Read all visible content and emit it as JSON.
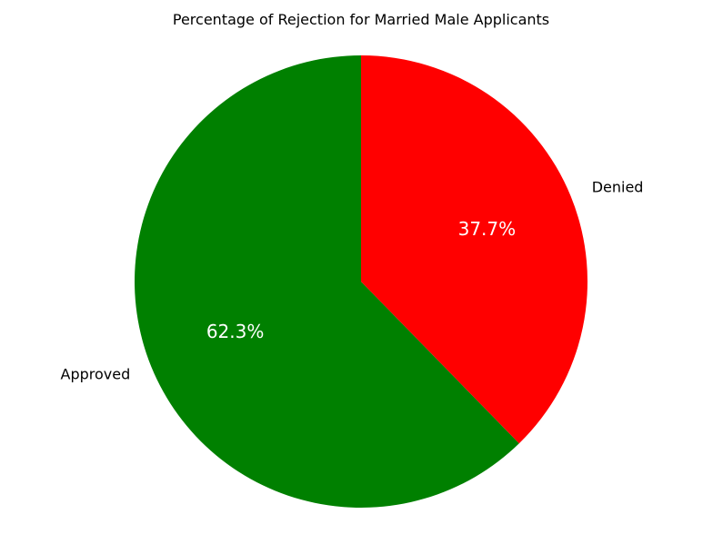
{
  "chart_data": {
    "type": "pie",
    "title": "Percentage of Rejection for Married Male Applicants",
    "categories": [
      "Approved",
      "Denied"
    ],
    "values": [
      62.3,
      37.7
    ],
    "value_labels": [
      "62.3%",
      "37.7%"
    ],
    "colors": [
      "#008000",
      "#ff0000"
    ],
    "start_angle_deg": 90,
    "direction": "counterclockwise",
    "legend": "none"
  }
}
